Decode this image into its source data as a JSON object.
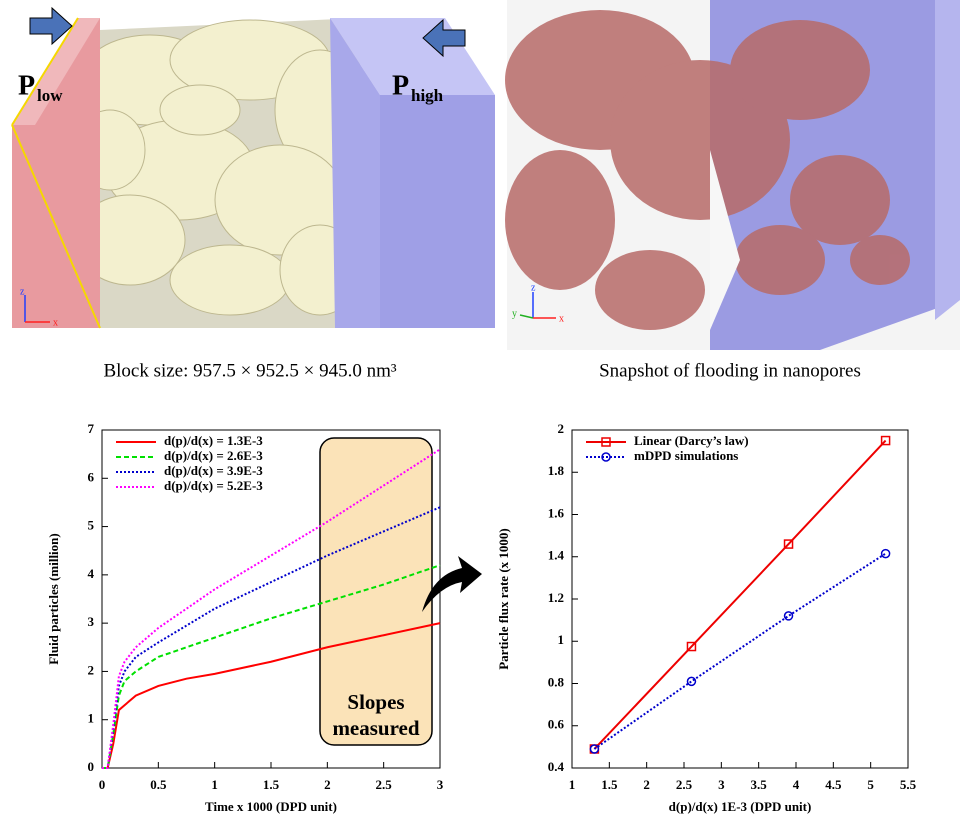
{
  "panels": [
    {
      "labels": [
        {
          "main": "P",
          "sub": "low"
        },
        {
          "main": "P",
          "sub": "high"
        }
      ],
      "axis_labels": [
        "z",
        "x"
      ],
      "caption": "Block size: 957.5 × 952.5 × 945.0 nm³"
    },
    {
      "axis_labels": [
        "z",
        "y",
        "x"
      ],
      "caption": "Snapshot of flooding in nanopores"
    }
  ],
  "chart_data": [
    {
      "type": "line",
      "xlabel": "Time x 1000 (DPD unit)",
      "ylabel": "Fluid particles (million)",
      "x": [
        0,
        0.05,
        0.1,
        0.15,
        0.2,
        0.3,
        0.5,
        0.75,
        1,
        1.5,
        2,
        2.5,
        3
      ],
      "series": [
        {
          "name": "d(p)/d(x) = 1.3E-3",
          "color": "#ff0000",
          "line_style": "solid",
          "values": [
            0,
            0,
            0.5,
            1.2,
            1.3,
            1.5,
            1.7,
            1.85,
            1.95,
            2.2,
            2.5,
            2.75,
            3.0
          ]
        },
        {
          "name": "d(p)/d(x) = 2.6E-3",
          "color": "#00e000",
          "line_style": "dashed",
          "values": [
            0,
            0,
            0.7,
            1.5,
            1.8,
            2.0,
            2.3,
            2.5,
            2.7,
            3.1,
            3.45,
            3.8,
            4.2
          ]
        },
        {
          "name": "d(p)/d(x) = 3.9E-3",
          "color": "#0000cc",
          "line_style": "dotted",
          "values": [
            0,
            0,
            0.8,
            1.7,
            2.0,
            2.3,
            2.6,
            2.95,
            3.3,
            3.85,
            4.4,
            4.9,
            5.4
          ]
        },
        {
          "name": "d(p)/d(x) = 5.2E-3",
          "color": "#ff00ff",
          "line_style": "dotted",
          "values": [
            0,
            0,
            0.9,
            1.9,
            2.2,
            2.5,
            2.9,
            3.3,
            3.7,
            4.4,
            5.1,
            5.85,
            6.6
          ]
        }
      ],
      "xlim": [
        0,
        3
      ],
      "ylim": [
        0,
        7
      ],
      "xticks": [
        0,
        0.5,
        1,
        1.5,
        2,
        2.5,
        3
      ],
      "yticks": [
        0,
        1,
        2,
        3,
        4,
        5,
        6,
        7
      ],
      "legend": "upper left",
      "annotation": [
        "Slopes",
        "measured"
      ]
    },
    {
      "type": "line",
      "xlabel": "d(p)/d(x) 1E-3 (DPD unit)",
      "ylabel": "Particle flux rate (x 1000)",
      "x": [
        1.3,
        2.6,
        3.9,
        5.2
      ],
      "series": [
        {
          "name": "Linear (Darcy’s law)",
          "color": "#ee0000",
          "line_style": "solid",
          "marker": "square",
          "values": [
            0.49,
            0.975,
            1.46,
            1.95
          ]
        },
        {
          "name": "mDPD simulations",
          "color": "#0000cc",
          "line_style": "dotted",
          "marker": "circle",
          "values": [
            0.49,
            0.81,
            1.12,
            1.415
          ]
        }
      ],
      "xlim": [
        1,
        5.5
      ],
      "ylim": [
        0.4,
        2
      ],
      "xticks": [
        1,
        1.5,
        2,
        2.5,
        3,
        3.5,
        4,
        4.5,
        5,
        5.5
      ],
      "yticks": [
        0.4,
        0.6,
        0.8,
        1,
        1.2,
        1.4,
        1.6,
        1.8,
        2
      ],
      "legend": "upper left"
    }
  ]
}
